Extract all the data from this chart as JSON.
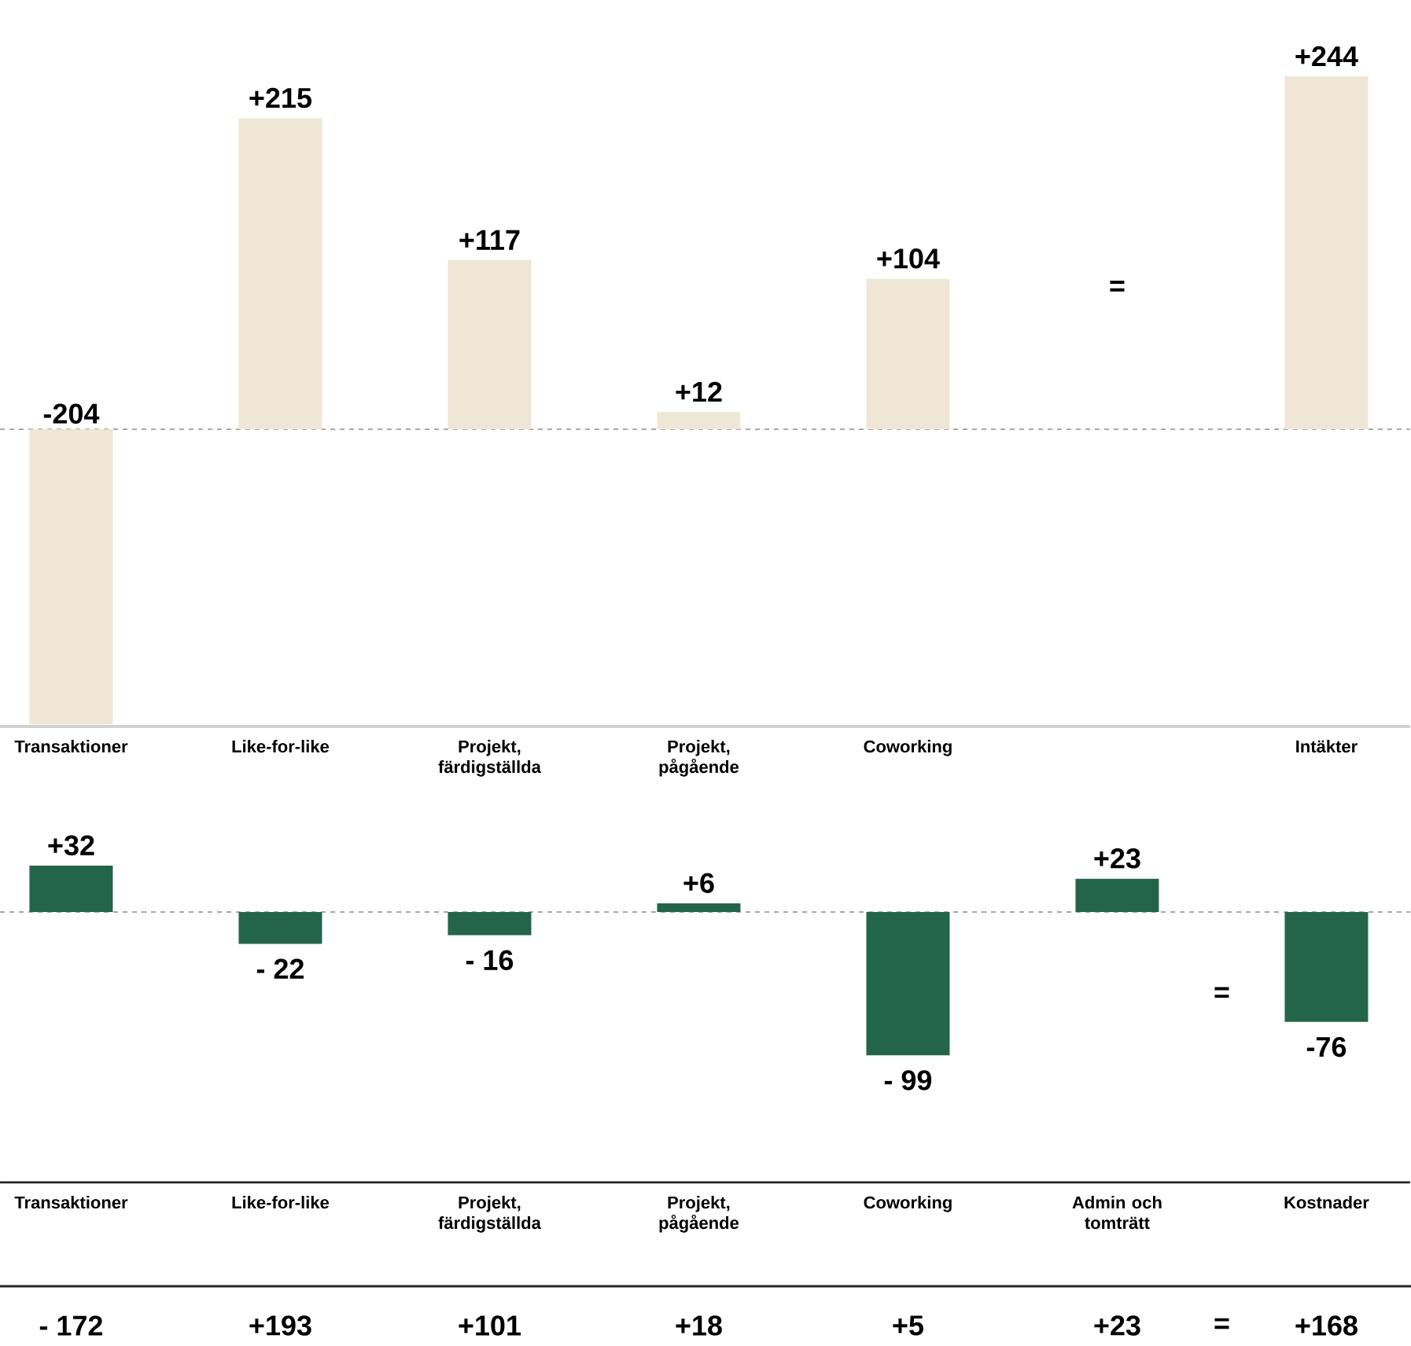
{
  "chart_data": [
    {
      "type": "bar",
      "categories": [
        "Transaktioner",
        "Like-for-like",
        "Projekt, färdigställda",
        "Projekt, pågående",
        "Coworking",
        null,
        "Intäkter"
      ],
      "values": [
        -204,
        215,
        117,
        12,
        104,
        null,
        244
      ],
      "value_labels": [
        "-204",
        "+215",
        "+117",
        "+12",
        "+104",
        null,
        "+244"
      ],
      "color": "#efe6d6",
      "annotations": [
        "="
      ],
      "ref_lines": [
        {
          "axis": "y",
          "value": 0,
          "line_style": "dashed",
          "color": "#555555"
        }
      ]
    },
    {
      "type": "bar",
      "categories": [
        "Transaktioner",
        "Like-for-like",
        "Projekt, färdigställda",
        "Projekt, pågående",
        "Coworking",
        "Admin och tomträtt",
        "Kostnader"
      ],
      "values": [
        32,
        -22,
        -16,
        6,
        -99,
        23,
        -76
      ],
      "value_labels": [
        "+32",
        "- 22",
        "- 16",
        "+6",
        "- 99",
        "+23",
        "-76"
      ],
      "color": "#23654a",
      "annotations": [
        "="
      ],
      "ref_lines": [
        {
          "axis": "y",
          "value": 0,
          "line_style": "dashed",
          "color": "#555555"
        }
      ]
    },
    {
      "type": "other",
      "values": [
        -172,
        193,
        101,
        18,
        5,
        23,
        168
      ],
      "value_labels": [
        "- 172",
        "+193",
        "+101",
        "+18",
        "+5",
        "+23",
        "+168"
      ],
      "annotations": [
        "="
      ]
    }
  ]
}
